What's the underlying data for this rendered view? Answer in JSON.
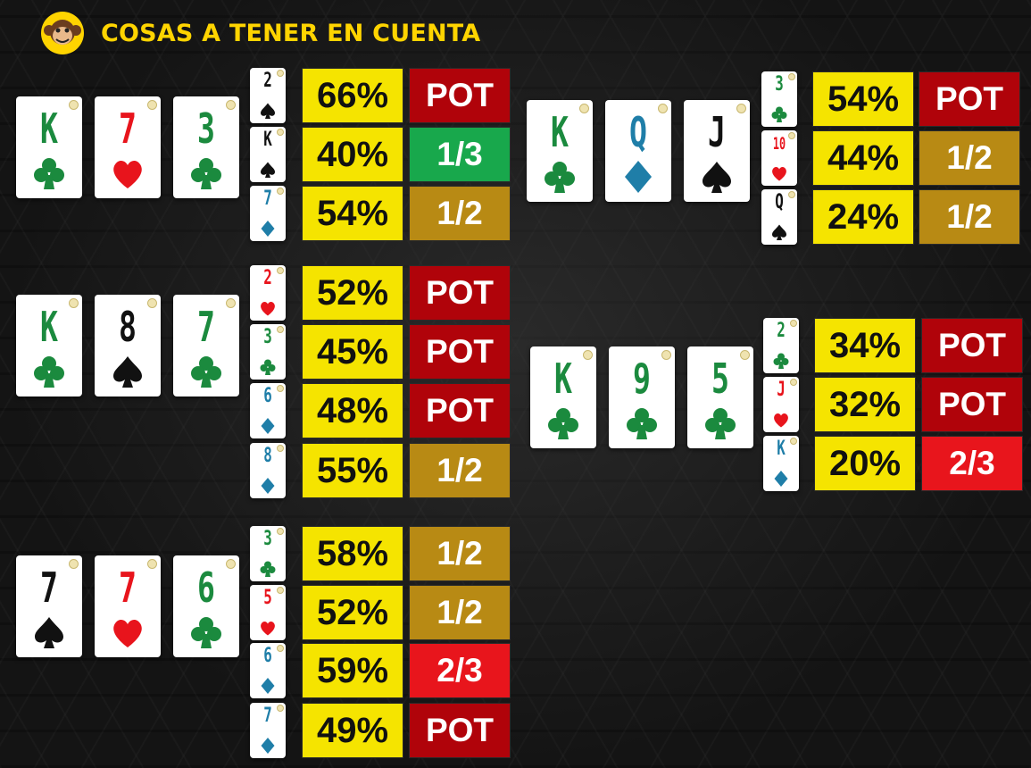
{
  "header": {
    "title": "COSAS A TENER EN CUENTA",
    "logo_icon": "monkey-logo-icon"
  },
  "colors": {
    "club": "#1b8a3e",
    "heart": "#e8141c",
    "diamond": "#1f7ea8",
    "spade": "#111111",
    "pct_bg": "#f5e400",
    "POT": "#b0030a",
    "1/2": "#b88a14",
    "1/3": "#18a84c",
    "2/3": "#e8151c"
  },
  "boards": [
    {
      "id": "k73",
      "flop": [
        {
          "rank": "K",
          "suit": "club"
        },
        {
          "rank": "7",
          "suit": "heart"
        },
        {
          "rank": "3",
          "suit": "club"
        }
      ],
      "turns": [
        {
          "rank": "2",
          "suit": "spade",
          "pct": "66%",
          "action": "POT"
        },
        {
          "rank": "K",
          "suit": "spade",
          "pct": "40%",
          "action": "1/3"
        },
        {
          "rank": "7",
          "suit": "diamond",
          "pct": "54%",
          "action": "1/2"
        }
      ]
    },
    {
      "id": "k87",
      "flop": [
        {
          "rank": "K",
          "suit": "club"
        },
        {
          "rank": "8",
          "suit": "spade"
        },
        {
          "rank": "7",
          "suit": "club"
        }
      ],
      "turns": [
        {
          "rank": "2",
          "suit": "heart",
          "pct": "52%",
          "action": "POT"
        },
        {
          "rank": "3",
          "suit": "club",
          "pct": "45%",
          "action": "POT"
        },
        {
          "rank": "6",
          "suit": "diamond",
          "pct": "48%",
          "action": "POT"
        },
        {
          "rank": "8",
          "suit": "diamond",
          "pct": "55%",
          "action": "1/2"
        }
      ]
    },
    {
      "id": "776",
      "flop": [
        {
          "rank": "7",
          "suit": "spade"
        },
        {
          "rank": "7",
          "suit": "heart"
        },
        {
          "rank": "6",
          "suit": "club"
        }
      ],
      "turns": [
        {
          "rank": "3",
          "suit": "club",
          "pct": "58%",
          "action": "1/2"
        },
        {
          "rank": "5",
          "suit": "heart",
          "pct": "52%",
          "action": "1/2"
        },
        {
          "rank": "6",
          "suit": "diamond",
          "pct": "59%",
          "action": "2/3"
        },
        {
          "rank": "7",
          "suit": "diamond",
          "pct": "49%",
          "action": "POT"
        }
      ]
    },
    {
      "id": "kqj",
      "flop": [
        {
          "rank": "K",
          "suit": "club"
        },
        {
          "rank": "Q",
          "suit": "diamond"
        },
        {
          "rank": "J",
          "suit": "spade"
        }
      ],
      "turns": [
        {
          "rank": "3",
          "suit": "club",
          "pct": "54%",
          "action": "POT"
        },
        {
          "rank": "10",
          "suit": "heart",
          "pct": "44%",
          "action": "1/2"
        },
        {
          "rank": "Q",
          "suit": "spade",
          "pct": "24%",
          "action": "1/2"
        }
      ]
    },
    {
      "id": "k95",
      "flop": [
        {
          "rank": "K",
          "suit": "club"
        },
        {
          "rank": "9",
          "suit": "club"
        },
        {
          "rank": "5",
          "suit": "club"
        }
      ],
      "turns": [
        {
          "rank": "2",
          "suit": "club",
          "pct": "34%",
          "action": "POT"
        },
        {
          "rank": "J",
          "suit": "heart",
          "pct": "32%",
          "action": "POT"
        },
        {
          "rank": "K",
          "suit": "diamond",
          "pct": "20%",
          "action": "2/3"
        }
      ]
    }
  ]
}
